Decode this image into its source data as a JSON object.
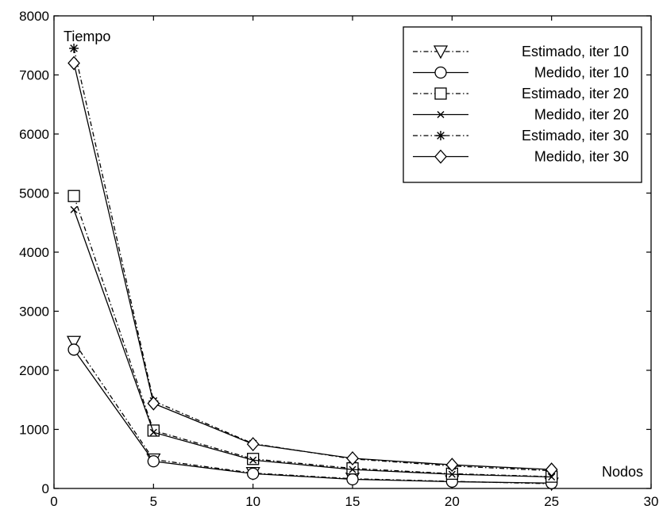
{
  "chart_data": {
    "type": "line",
    "title": "",
    "xlabel": "Nodos",
    "ylabel": "Tiempo",
    "xlim": [
      0,
      30
    ],
    "ylim": [
      0,
      8000
    ],
    "xticks": [
      "0",
      "5",
      "10",
      "15",
      "20",
      "25",
      "30"
    ],
    "yticks": [
      "0",
      "1000",
      "2000",
      "3000",
      "4000",
      "5000",
      "6000",
      "7000",
      "8000"
    ],
    "grid": false,
    "legend_position": "top-right",
    "x": [
      1,
      5,
      10,
      15,
      20,
      25
    ],
    "series": [
      {
        "name": "Estimado, iter 10",
        "line": "dashdot",
        "marker": "triangle-down",
        "values": [
          2480,
          490,
          260,
          165,
          120,
          80
        ]
      },
      {
        "name": "Medido, iter 10",
        "line": "solid",
        "marker": "circle",
        "values": [
          2350,
          460,
          250,
          155,
          115,
          90
        ]
      },
      {
        "name": "Estimado, iter 20",
        "line": "dashdot",
        "marker": "square",
        "values": [
          4950,
          980,
          500,
          340,
          250,
          200
        ]
      },
      {
        "name": "Medido, iter 20",
        "line": "solid",
        "marker": "x",
        "values": [
          4720,
          950,
          480,
          320,
          240,
          195
        ]
      },
      {
        "name": "Estimado, iter 30",
        "line": "dashdot",
        "marker": "star",
        "values": [
          7450,
          1480,
          760,
          500,
          380,
          300
        ]
      },
      {
        "name": "Medido, iter 30",
        "line": "solid",
        "marker": "diamond",
        "values": [
          7200,
          1440,
          750,
          510,
          400,
          320
        ]
      }
    ]
  }
}
